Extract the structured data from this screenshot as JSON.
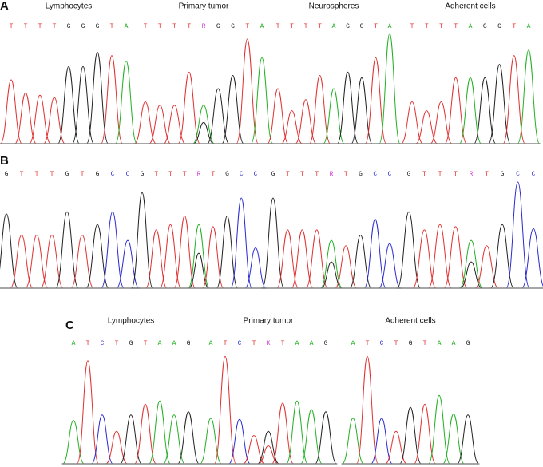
{
  "panels": [
    {
      "label": "A",
      "traces": [
        {
          "title": "Lymphocytes",
          "bases": [
            "T",
            "T",
            "T",
            "T",
            "G",
            "G",
            "G",
            "T",
            "A"
          ]
        },
        {
          "title": "Primary tumor",
          "bases": [
            "T",
            "T",
            "T",
            "T",
            "R",
            "G",
            "G",
            "T",
            "A"
          ]
        },
        {
          "title": "Neurospheres",
          "bases": [
            "T",
            "T",
            "T",
            "T",
            "A",
            "G",
            "G",
            "T",
            "A"
          ]
        },
        {
          "title": "Adherent cells",
          "bases": [
            "T",
            "T",
            "T",
            "T",
            "A",
            "G",
            "G",
            "T",
            "A"
          ]
        }
      ]
    },
    {
      "label": "B",
      "traces": [
        {
          "bases": [
            "G",
            "T",
            "T",
            "T",
            "G",
            "T",
            "G",
            "C",
            "C"
          ]
        },
        {
          "bases": [
            "G",
            "T",
            "T",
            "T",
            "R",
            "T",
            "G",
            "C",
            "C"
          ]
        },
        {
          "bases": [
            "G",
            "T",
            "T",
            "T",
            "R",
            "T",
            "G",
            "C",
            "C"
          ]
        },
        {
          "bases": [
            "G",
            "T",
            "T",
            "T",
            "R",
            "T",
            "G",
            "C",
            "C"
          ]
        }
      ]
    },
    {
      "label": "C",
      "traces": [
        {
          "title": "Lymphocytes",
          "bases": [
            "A",
            "T",
            "C",
            "T",
            "G",
            "T",
            "A",
            "A",
            "G"
          ]
        },
        {
          "title": "Primary tumor",
          "bases": [
            "A",
            "T",
            "C",
            "T",
            "K",
            "T",
            "A",
            "A",
            "G"
          ]
        },
        {
          "title": "Adherent cells",
          "bases": [
            "A",
            "T",
            "C",
            "T",
            "G",
            "T",
            "A",
            "A",
            "G"
          ]
        }
      ]
    }
  ],
  "base_colors": {
    "A": "#22b022",
    "C": "#2a2ad0",
    "G": "#222222",
    "T": "#e03030",
    "R": "#d040d0",
    "K": "#d040d0"
  }
}
